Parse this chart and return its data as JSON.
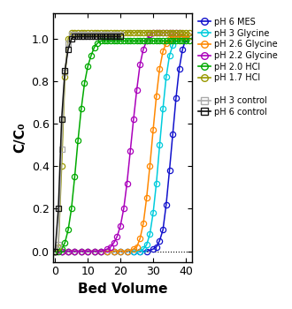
{
  "xlabel": "Bed Volume",
  "ylabel": "C/C₀",
  "xlim": [
    -0.5,
    42
  ],
  "ylim": [
    -0.05,
    1.12
  ],
  "yticks": [
    0.0,
    0.2,
    0.4,
    0.6,
    0.8,
    1.0
  ],
  "xticks": [
    0,
    10,
    20,
    30,
    40
  ],
  "background_color": "#ffffff",
  "series": {
    "pH 6 MES": {
      "color": "#1111cc",
      "marker": "o",
      "x": [
        0,
        2,
        4,
        6,
        8,
        10,
        12,
        14,
        16,
        18,
        20,
        22,
        24,
        26,
        28,
        30,
        31,
        32,
        33,
        34,
        35,
        36,
        37,
        38,
        39,
        40,
        41
      ],
      "y": [
        0,
        0,
        0,
        0,
        0,
        0,
        0,
        0,
        0,
        0,
        0,
        0,
        0,
        0,
        0,
        0.01,
        0.02,
        0.05,
        0.1,
        0.22,
        0.38,
        0.55,
        0.72,
        0.86,
        0.95,
        1.0,
        1.01
      ]
    },
    "pH 3 Glycine": {
      "color": "#00ccdd",
      "marker": "o",
      "x": [
        0,
        2,
        4,
        6,
        8,
        10,
        12,
        14,
        16,
        18,
        20,
        22,
        24,
        26,
        27,
        28,
        29,
        30,
        31,
        32,
        33,
        34,
        35,
        36,
        37,
        38,
        39,
        40,
        41
      ],
      "y": [
        0,
        0,
        0,
        0,
        0,
        0,
        0,
        0,
        0,
        0,
        0,
        0,
        0,
        0,
        0.01,
        0.03,
        0.08,
        0.18,
        0.32,
        0.5,
        0.67,
        0.82,
        0.92,
        0.97,
        1.0,
        1.01,
        1.01,
        1.01,
        1.01
      ]
    },
    "pH 2.6 Glycine": {
      "color": "#ff8800",
      "marker": "o",
      "x": [
        0,
        2,
        4,
        6,
        8,
        10,
        12,
        14,
        16,
        18,
        20,
        22,
        24,
        25,
        26,
        27,
        28,
        29,
        30,
        31,
        32,
        33,
        34,
        35,
        36,
        37,
        38,
        39,
        40,
        41
      ],
      "y": [
        0,
        0,
        0,
        0,
        0,
        0,
        0,
        0,
        0,
        0,
        0,
        0,
        0.01,
        0.02,
        0.06,
        0.13,
        0.25,
        0.4,
        0.57,
        0.73,
        0.86,
        0.94,
        0.98,
        1.0,
        1.01,
        1.01,
        1.01,
        1.01,
        1.01,
        1.01
      ]
    },
    "pH 2.2 Glycine": {
      "color": "#aa00bb",
      "marker": "o",
      "x": [
        0,
        2,
        4,
        6,
        8,
        10,
        12,
        14,
        16,
        17,
        18,
        19,
        20,
        21,
        22,
        23,
        24,
        25,
        26,
        27,
        28,
        29,
        30,
        31,
        32,
        33,
        34,
        35,
        36,
        37,
        38
      ],
      "y": [
        0,
        0,
        0,
        0,
        0,
        0,
        0,
        0,
        0.01,
        0.02,
        0.04,
        0.07,
        0.12,
        0.2,
        0.32,
        0.47,
        0.62,
        0.76,
        0.88,
        0.95,
        0.99,
        1.02,
        1.03,
        1.03,
        1.03,
        1.03,
        1.03,
        1.03,
        1.03,
        1.03,
        1.03
      ]
    },
    "pH 2.0 HCl": {
      "color": "#00aa00",
      "marker": "o",
      "x": [
        0,
        1,
        2,
        3,
        4,
        5,
        6,
        7,
        8,
        9,
        10,
        11,
        12,
        13,
        14,
        15,
        16,
        17,
        18,
        19,
        20,
        21,
        22,
        23,
        24,
        25,
        26,
        27,
        28,
        29,
        30,
        31,
        32,
        33,
        34,
        35,
        36,
        37,
        38,
        39,
        40,
        41
      ],
      "y": [
        0,
        0,
        0.01,
        0.04,
        0.1,
        0.2,
        0.35,
        0.52,
        0.67,
        0.79,
        0.87,
        0.92,
        0.96,
        0.98,
        0.99,
        0.99,
        0.99,
        0.99,
        0.99,
        0.99,
        0.99,
        0.99,
        0.99,
        0.99,
        0.99,
        0.99,
        0.99,
        0.99,
        0.99,
        0.99,
        0.99,
        0.99,
        0.99,
        0.99,
        0.99,
        0.99,
        0.99,
        0.99,
        0.99,
        0.99,
        0.99,
        0.99
      ]
    },
    "pH 1.7 HCl": {
      "color": "#999900",
      "marker": "o",
      "x": [
        0,
        1,
        2,
        3,
        4,
        5,
        6,
        7,
        8,
        9,
        10,
        11,
        12,
        13,
        14,
        15,
        16,
        17,
        18,
        19,
        20,
        21,
        22,
        23,
        24,
        25,
        26,
        27,
        28,
        29,
        30,
        31,
        32,
        33,
        34,
        35,
        36,
        37,
        38,
        39,
        40,
        41
      ],
      "y": [
        0,
        0.02,
        0.4,
        0.82,
        1.0,
        1.03,
        1.03,
        1.03,
        1.03,
        1.03,
        1.03,
        1.03,
        1.03,
        1.03,
        1.03,
        1.03,
        1.03,
        1.03,
        1.03,
        1.03,
        1.03,
        1.03,
        1.03,
        1.03,
        1.03,
        1.03,
        1.03,
        1.03,
        1.03,
        1.03,
        1.03,
        1.03,
        1.03,
        1.03,
        1.03,
        1.03,
        1.03,
        1.03,
        1.03,
        1.03,
        1.03,
        1.03
      ]
    },
    "pH 3 control": {
      "color": "#aaaaaa",
      "marker": "s",
      "x": [
        0,
        1,
        2,
        3,
        4,
        5,
        6,
        7,
        8,
        9,
        10,
        11,
        12,
        13,
        14,
        15,
        16,
        17,
        18,
        19,
        20
      ],
      "y": [
        0,
        0.03,
        0.48,
        0.84,
        0.98,
        1.02,
        1.02,
        1.02,
        1.02,
        1.02,
        1.02,
        1.02,
        1.02,
        1.02,
        1.02,
        1.02,
        1.02,
        1.02,
        1.02,
        1.02,
        1.02
      ]
    },
    "pH 6 control": {
      "color": "#111111",
      "marker": "s",
      "x": [
        0,
        1,
        2,
        3,
        4,
        5,
        6,
        7,
        8,
        9,
        10,
        11,
        12,
        13,
        14,
        15,
        16,
        17,
        18,
        19,
        20
      ],
      "y": [
        0,
        0.2,
        0.62,
        0.85,
        0.95,
        1.0,
        1.01,
        1.01,
        1.01,
        1.01,
        1.01,
        1.01,
        1.01,
        1.01,
        1.01,
        1.01,
        1.01,
        1.01,
        1.01,
        1.01,
        1.01
      ]
    }
  },
  "legend_entries": [
    {
      "label": "pH 6 MES",
      "color": "#1111cc",
      "marker": "o",
      "lw": 1.2
    },
    {
      "label": "pH 3 Glycine",
      "color": "#00ccdd",
      "marker": "o",
      "lw": 1.2
    },
    {
      "label": "pH 2.6 Glycine",
      "color": "#ff8800",
      "marker": "o",
      "lw": 1.2
    },
    {
      "label": "pH 2.2 Glycine",
      "color": "#aa00bb",
      "marker": "o",
      "lw": 1.2
    },
    {
      "label": "pH 2.0 HCl",
      "color": "#00aa00",
      "marker": "o",
      "lw": 1.2
    },
    {
      "label": "pH 1.7 HCl",
      "color": "#999900",
      "marker": "o",
      "lw": 1.2
    },
    {
      "label": "",
      "color": "none",
      "marker": "None",
      "lw": 0
    },
    {
      "label": "pH 3 control",
      "color": "#aaaaaa",
      "marker": "s",
      "lw": 1.2
    },
    {
      "label": "pH 6 control",
      "color": "#111111",
      "marker": "s",
      "lw": 1.2
    }
  ]
}
